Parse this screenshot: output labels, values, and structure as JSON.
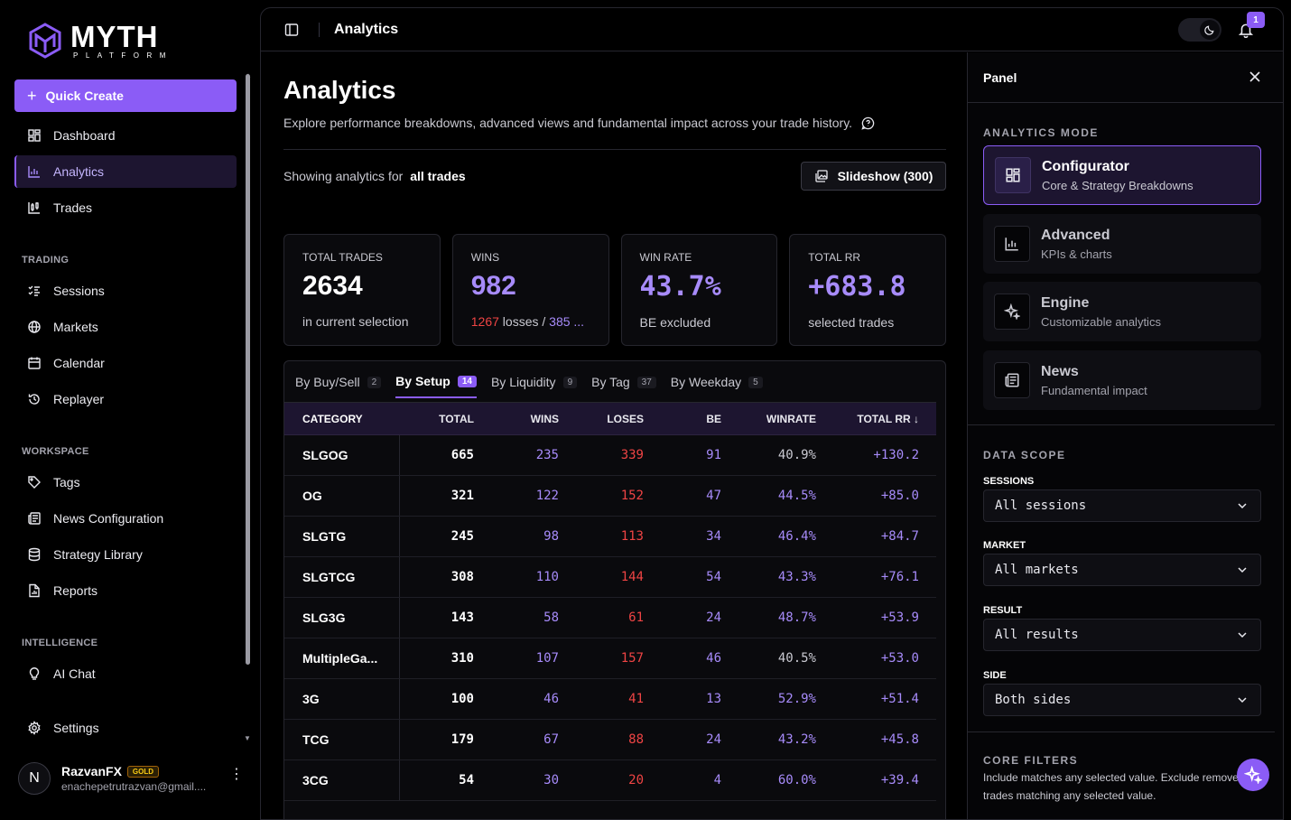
{
  "brand": {
    "word": "MYTH",
    "sub": "PLATFORM"
  },
  "sidebar": {
    "quick_create": "Quick Create",
    "main_items": [
      {
        "label": "Dashboard",
        "icon": "dashboard-icon"
      },
      {
        "label": "Analytics",
        "icon": "chart-icon",
        "active": true
      },
      {
        "label": "Trades",
        "icon": "trades-icon"
      }
    ],
    "trading_label": "TRADING",
    "trading_items": [
      {
        "label": "Sessions",
        "icon": "list-check-icon"
      },
      {
        "label": "Markets",
        "icon": "globe-icon"
      },
      {
        "label": "Calendar",
        "icon": "calendar-icon"
      },
      {
        "label": "Replayer",
        "icon": "history-icon"
      }
    ],
    "workspace_label": "WORKSPACE",
    "workspace_items": [
      {
        "label": "Tags",
        "icon": "tag-icon"
      },
      {
        "label": "News Configuration",
        "icon": "newspaper-icon"
      },
      {
        "label": "Strategy Library",
        "icon": "database-icon"
      },
      {
        "label": "Reports",
        "icon": "file-chart-icon"
      }
    ],
    "intelligence_label": "INTELLIGENCE",
    "intelligence_items": [
      {
        "label": "AI Chat",
        "icon": "lightbulb-icon"
      }
    ],
    "settings": "Settings",
    "user": {
      "initial": "N",
      "name": "RazvanFX",
      "badge": "GOLD",
      "email": "enachepetrutrazvan@gmail...."
    }
  },
  "topbar": {
    "title": "Analytics",
    "notifications": "1"
  },
  "main": {
    "title": "Analytics",
    "description": "Explore performance breakdowns, advanced views and fundamental impact across your trade history.",
    "showing_prefix": "Showing analytics for",
    "showing_value": "all trades",
    "slideshow": "Slideshow (300)",
    "stats": [
      {
        "label": "TOTAL TRADES",
        "value": "2634",
        "sub": "in current selection"
      },
      {
        "label": "WINS",
        "value": "982",
        "sub_losses": "1267",
        "sub_mid": " losses / ",
        "sub_be": "385 ..."
      },
      {
        "label": "WIN RATE",
        "value": "43.7%",
        "sub": "BE excluded"
      },
      {
        "label": "TOTAL RR",
        "value": "+683.8",
        "sub": "selected trades"
      }
    ],
    "tabs": [
      {
        "label": "By Buy/Sell",
        "count": "2"
      },
      {
        "label": "By Setup",
        "count": "14",
        "active": true
      },
      {
        "label": "By Liquidity",
        "count": "9"
      },
      {
        "label": "By Tag",
        "count": "37"
      },
      {
        "label": "By Weekday",
        "count": "5"
      }
    ],
    "columns": [
      "CATEGORY",
      "TOTAL",
      "WINS",
      "LOSES",
      "BE",
      "WINRATE",
      "TOTAL RR ↓"
    ],
    "rows": [
      {
        "cat": "SLGOG",
        "total": "665",
        "wins": "235",
        "loses": "339",
        "be": "91",
        "wr": "40.9%",
        "rr": "+130.2",
        "hi": false
      },
      {
        "cat": "OG",
        "total": "321",
        "wins": "122",
        "loses": "152",
        "be": "47",
        "wr": "44.5%",
        "rr": "+85.0",
        "hi": true
      },
      {
        "cat": "SLGTG",
        "total": "245",
        "wins": "98",
        "loses": "113",
        "be": "34",
        "wr": "46.4%",
        "rr": "+84.7",
        "hi": true
      },
      {
        "cat": "SLGTCG",
        "total": "308",
        "wins": "110",
        "loses": "144",
        "be": "54",
        "wr": "43.3%",
        "rr": "+76.1",
        "hi": true
      },
      {
        "cat": "SLG3G",
        "total": "143",
        "wins": "58",
        "loses": "61",
        "be": "24",
        "wr": "48.7%",
        "rr": "+53.9",
        "hi": true
      },
      {
        "cat": "MultipleGa...",
        "total": "310",
        "wins": "107",
        "loses": "157",
        "be": "46",
        "wr": "40.5%",
        "rr": "+53.0",
        "hi": false
      },
      {
        "cat": "3G",
        "total": "100",
        "wins": "46",
        "loses": "41",
        "be": "13",
        "wr": "52.9%",
        "rr": "+51.4",
        "hi": true
      },
      {
        "cat": "TCG",
        "total": "179",
        "wins": "67",
        "loses": "88",
        "be": "24",
        "wr": "43.2%",
        "rr": "+45.8",
        "hi": true
      },
      {
        "cat": "3CG",
        "total": "54",
        "wins": "30",
        "loses": "20",
        "be": "4",
        "wr": "60.0%",
        "rr": "+39.4",
        "hi": true
      }
    ]
  },
  "panel": {
    "title": "Panel",
    "mode_label": "ANALYTICS MODE",
    "modes": [
      {
        "name": "Configurator",
        "desc": "Core & Strategy Breakdowns",
        "icon": "grid-icon",
        "active": true
      },
      {
        "name": "Advanced",
        "desc": "KPIs & charts",
        "icon": "bar-chart-icon"
      },
      {
        "name": "Engine",
        "desc": "Customizable analytics",
        "icon": "sparkles-icon"
      },
      {
        "name": "News",
        "desc": "Fundamental impact",
        "icon": "newspaper-icon"
      }
    ],
    "scope_label": "DATA SCOPE",
    "fields": [
      {
        "label": "SESSIONS",
        "value": "All sessions"
      },
      {
        "label": "MARKET",
        "value": "All markets"
      },
      {
        "label": "RESULT",
        "value": "All results"
      },
      {
        "label": "SIDE",
        "value": "Both sides"
      }
    ],
    "core_label": "CORE FILTERS",
    "core_desc": "Include matches any selected value. Exclude removes trades matching any selected value."
  },
  "colors": {
    "accent": "#8b5cf6",
    "accent_light": "#a78bfa",
    "loss": "#ef4444"
  }
}
